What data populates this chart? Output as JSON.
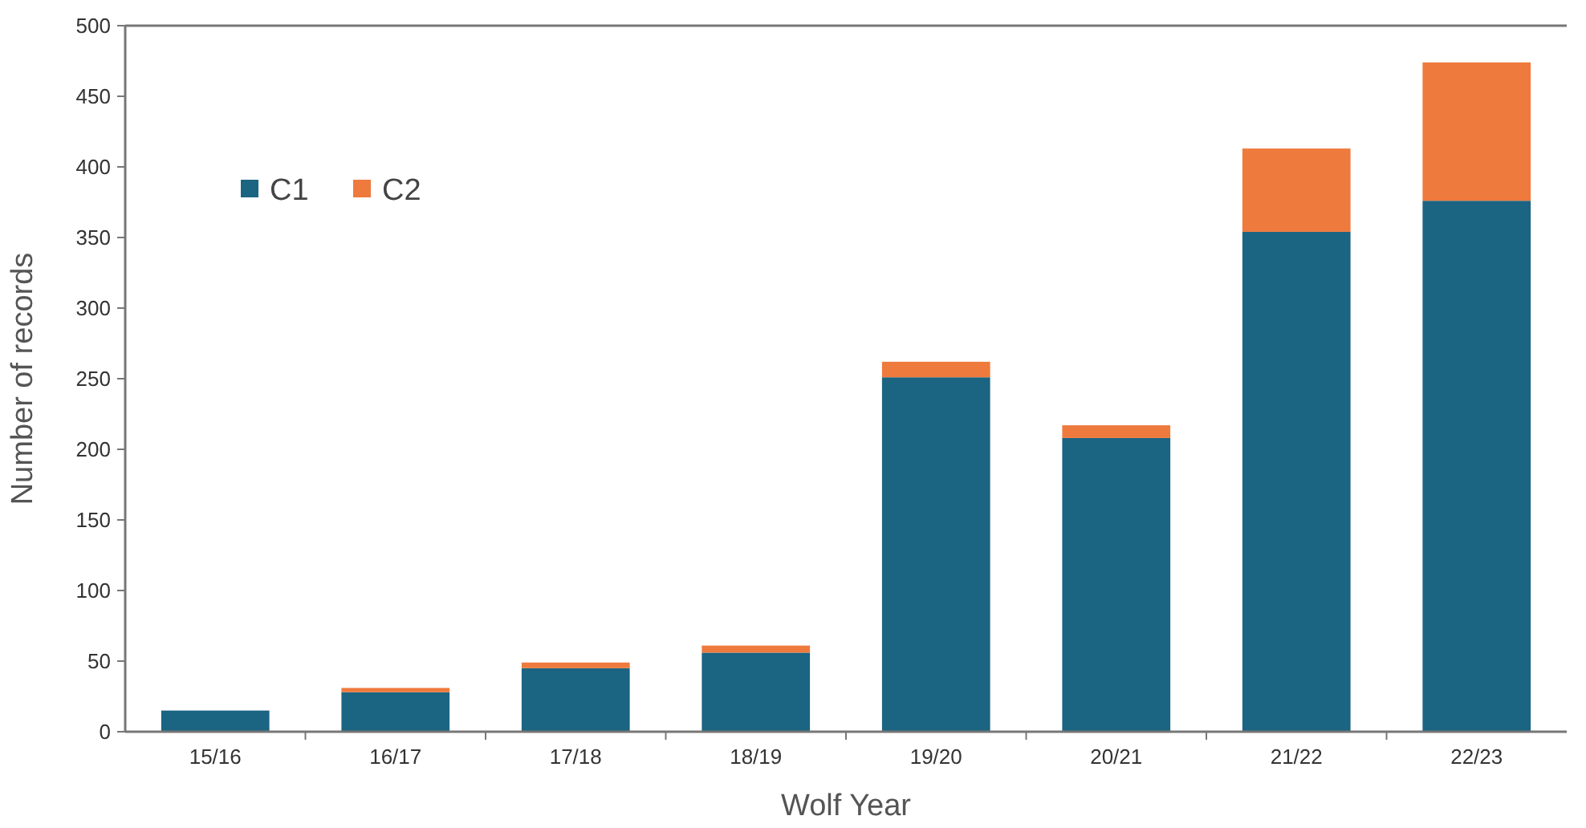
{
  "chart_data": {
    "type": "bar",
    "stacked": true,
    "xlabel": "Wolf Year",
    "ylabel": "Number of records",
    "categories": [
      "15/16",
      "16/17",
      "17/18",
      "18/19",
      "19/20",
      "20/21",
      "21/22",
      "22/23"
    ],
    "series": [
      {
        "name": "C1",
        "color": "#1b6482",
        "values": [
          15,
          28,
          45,
          56,
          251,
          208,
          354,
          376
        ]
      },
      {
        "name": "C2",
        "color": "#ee7a3d",
        "values": [
          0,
          3,
          4,
          5,
          11,
          9,
          59,
          98
        ]
      }
    ],
    "ylim": [
      0,
      500
    ],
    "yticks": [
      0,
      50,
      100,
      150,
      200,
      250,
      300,
      350,
      400,
      450,
      500
    ],
    "grid": false,
    "legend": "top left"
  }
}
